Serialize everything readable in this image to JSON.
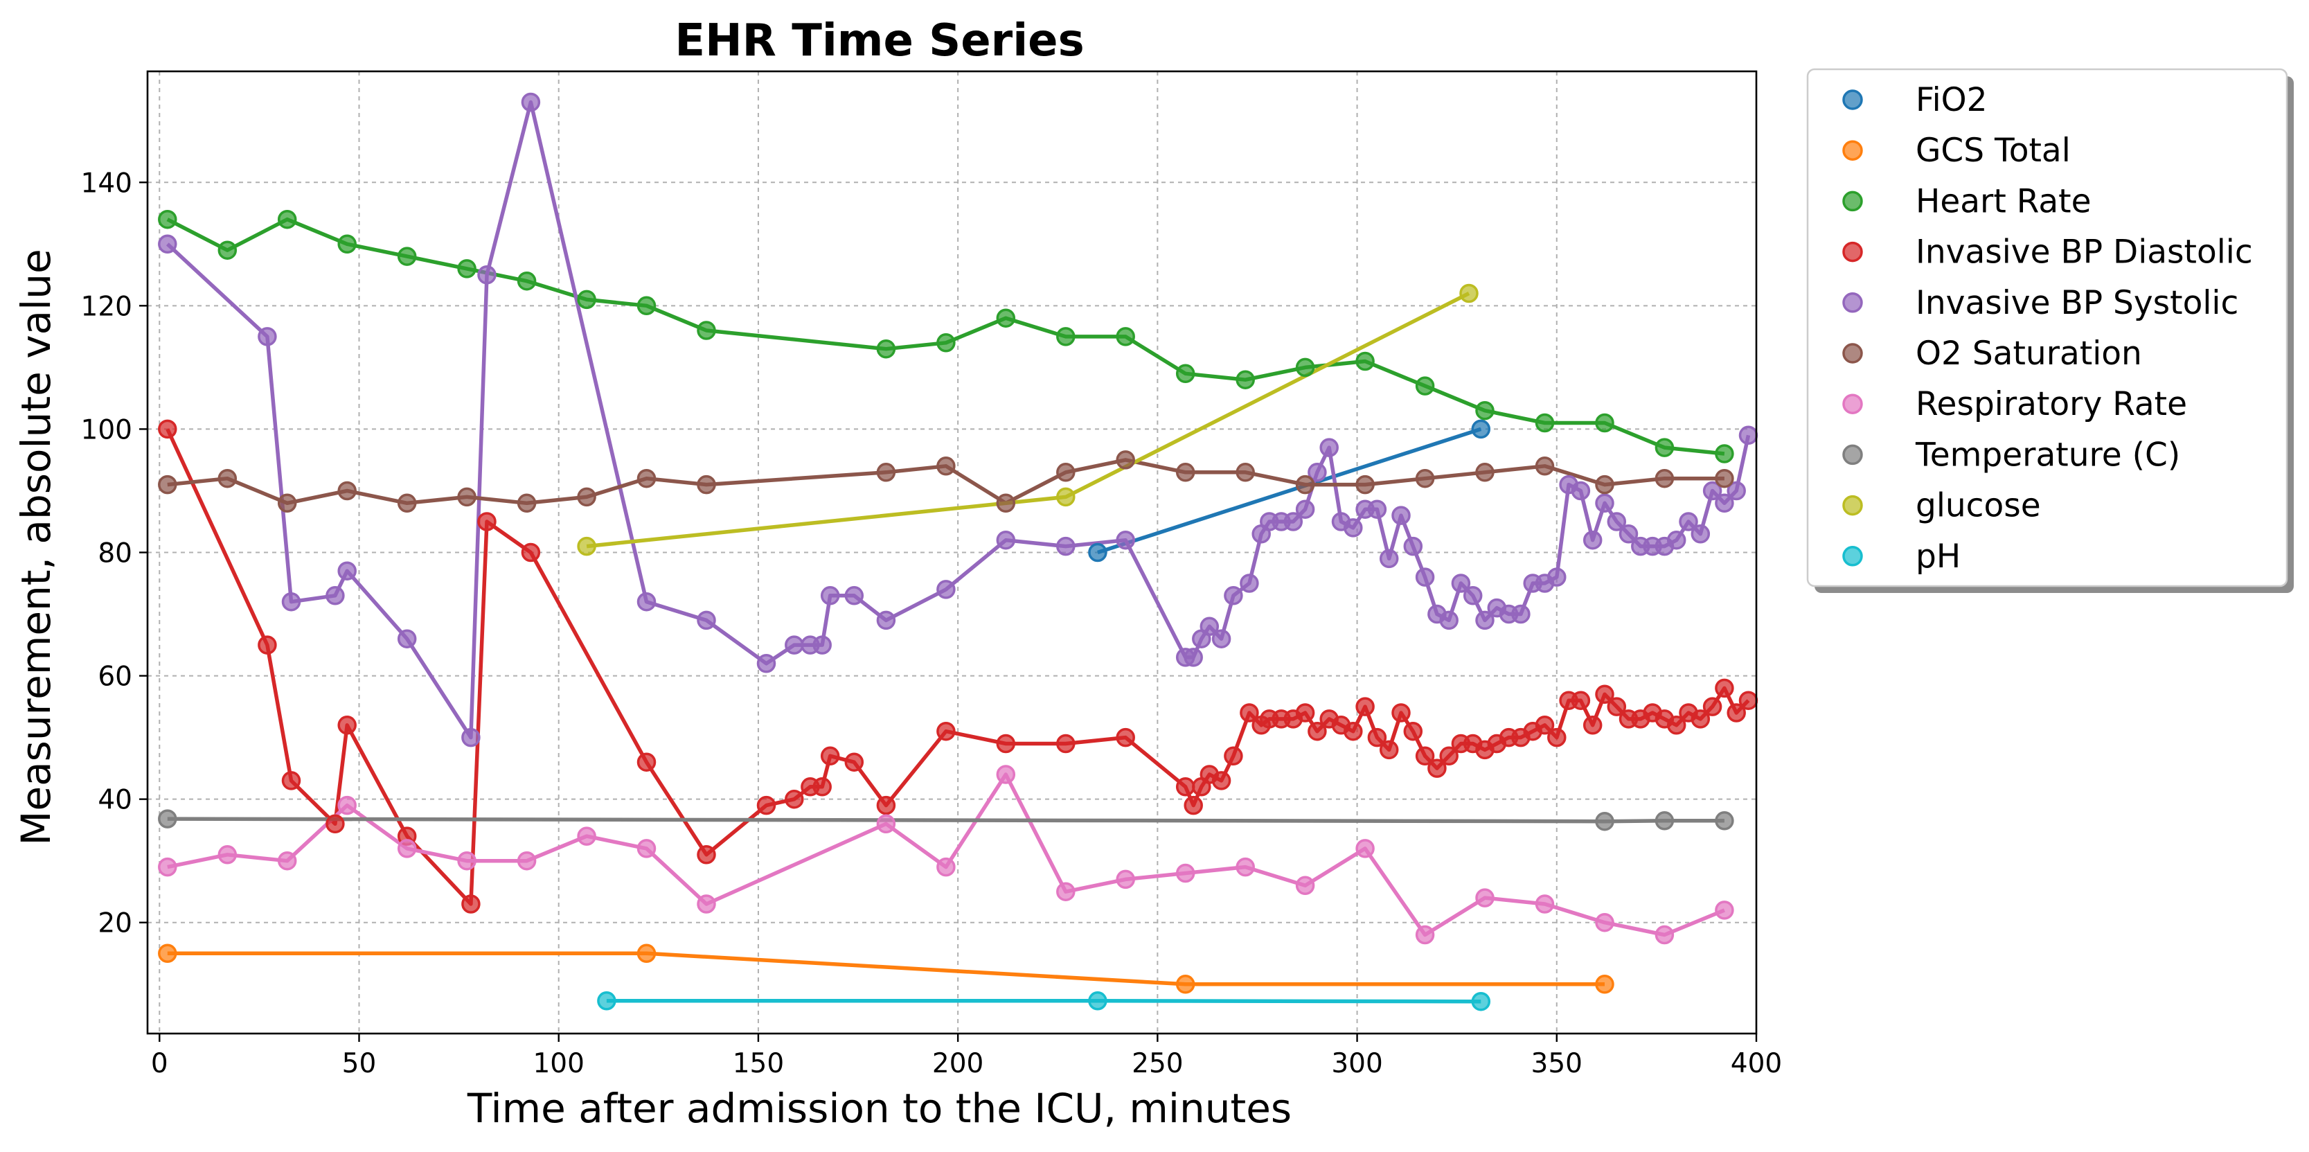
{
  "chart_data": {
    "type": "line",
    "title": "EHR Time Series",
    "xlabel": "Time after admission to the ICU, minutes",
    "ylabel": "Measurement, absolute value",
    "xlim": [
      -3,
      400
    ],
    "ylim": [
      2,
      158
    ],
    "xticks": [
      0,
      50,
      100,
      150,
      200,
      250,
      300,
      350,
      400
    ],
    "yticks": [
      20,
      40,
      60,
      80,
      100,
      120,
      140
    ],
    "grid": true,
    "legend_position": "outside-top-right",
    "series": [
      {
        "name": "FiO2",
        "color": "#1f77b4",
        "points": [
          [
            235,
            80
          ],
          [
            331,
            100
          ]
        ]
      },
      {
        "name": "GCS Total",
        "color": "#ff7f0e",
        "points": [
          [
            2,
            15
          ],
          [
            122,
            15
          ],
          [
            257,
            10
          ],
          [
            362,
            10
          ]
        ]
      },
      {
        "name": "Heart Rate",
        "color": "#2ca02c",
        "points": [
          [
            2,
            134
          ],
          [
            17,
            129
          ],
          [
            32,
            134
          ],
          [
            47,
            130
          ],
          [
            62,
            128
          ],
          [
            77,
            126
          ],
          [
            92,
            124
          ],
          [
            107,
            121
          ],
          [
            122,
            120
          ],
          [
            137,
            116
          ],
          [
            182,
            113
          ],
          [
            197,
            114
          ],
          [
            212,
            118
          ],
          [
            227,
            115
          ],
          [
            242,
            115
          ],
          [
            257,
            109
          ],
          [
            272,
            108
          ],
          [
            287,
            110
          ],
          [
            302,
            111
          ],
          [
            317,
            107
          ],
          [
            332,
            103
          ],
          [
            347,
            101
          ],
          [
            362,
            101
          ],
          [
            377,
            97
          ],
          [
            392,
            96
          ]
        ]
      },
      {
        "name": "Invasive BP Diastolic",
        "color": "#d62728",
        "points": [
          [
            2,
            100
          ],
          [
            27,
            65
          ],
          [
            33,
            43
          ],
          [
            44,
            36
          ],
          [
            47,
            52
          ],
          [
            62,
            34
          ],
          [
            78,
            23
          ],
          [
            82,
            85
          ],
          [
            93,
            80
          ],
          [
            122,
            46
          ],
          [
            137,
            31
          ],
          [
            152,
            39
          ],
          [
            159,
            40
          ],
          [
            163,
            42
          ],
          [
            166,
            42
          ],
          [
            168,
            47
          ],
          [
            174,
            46
          ],
          [
            182,
            39
          ],
          [
            197,
            51
          ],
          [
            212,
            49
          ],
          [
            227,
            49
          ],
          [
            242,
            50
          ],
          [
            257,
            42
          ],
          [
            259,
            39
          ],
          [
            261,
            42
          ],
          [
            263,
            44
          ],
          [
            266,
            43
          ],
          [
            269,
            47
          ],
          [
            273,
            54
          ],
          [
            276,
            52
          ],
          [
            278,
            53
          ],
          [
            281,
            53
          ],
          [
            284,
            53
          ],
          [
            287,
            54
          ],
          [
            290,
            51
          ],
          [
            293,
            53
          ],
          [
            296,
            52
          ],
          [
            299,
            51
          ],
          [
            302,
            55
          ],
          [
            305,
            50
          ],
          [
            308,
            48
          ],
          [
            311,
            54
          ],
          [
            314,
            51
          ],
          [
            317,
            47
          ],
          [
            320,
            45
          ],
          [
            323,
            47
          ],
          [
            326,
            49
          ],
          [
            329,
            49
          ],
          [
            332,
            48
          ],
          [
            335,
            49
          ],
          [
            338,
            50
          ],
          [
            341,
            50
          ],
          [
            344,
            51
          ],
          [
            347,
            52
          ],
          [
            350,
            50
          ],
          [
            353,
            56
          ],
          [
            356,
            56
          ],
          [
            359,
            52
          ],
          [
            362,
            57
          ],
          [
            365,
            55
          ],
          [
            368,
            53
          ],
          [
            371,
            53
          ],
          [
            374,
            54
          ],
          [
            377,
            53
          ],
          [
            380,
            52
          ],
          [
            383,
            54
          ],
          [
            386,
            53
          ],
          [
            389,
            55
          ],
          [
            392,
            58
          ],
          [
            395,
            54
          ],
          [
            398,
            56
          ]
        ]
      },
      {
        "name": "Invasive BP Systolic",
        "color": "#9467bd",
        "points": [
          [
            2,
            130
          ],
          [
            27,
            115
          ],
          [
            33,
            72
          ],
          [
            44,
            73
          ],
          [
            47,
            77
          ],
          [
            62,
            66
          ],
          [
            78,
            50
          ],
          [
            82,
            125
          ],
          [
            93,
            153
          ],
          [
            122,
            72
          ],
          [
            137,
            69
          ],
          [
            152,
            62
          ],
          [
            159,
            65
          ],
          [
            163,
            65
          ],
          [
            166,
            65
          ],
          [
            168,
            73
          ],
          [
            174,
            73
          ],
          [
            182,
            69
          ],
          [
            197,
            74
          ],
          [
            212,
            82
          ],
          [
            227,
            81
          ],
          [
            242,
            82
          ],
          [
            257,
            63
          ],
          [
            259,
            63
          ],
          [
            261,
            66
          ],
          [
            263,
            68
          ],
          [
            266,
            66
          ],
          [
            269,
            73
          ],
          [
            273,
            75
          ],
          [
            276,
            83
          ],
          [
            278,
            85
          ],
          [
            281,
            85
          ],
          [
            284,
            85
          ],
          [
            287,
            87
          ],
          [
            290,
            93
          ],
          [
            293,
            97
          ],
          [
            296,
            85
          ],
          [
            299,
            84
          ],
          [
            302,
            87
          ],
          [
            305,
            87
          ],
          [
            308,
            79
          ],
          [
            311,
            86
          ],
          [
            314,
            81
          ],
          [
            317,
            76
          ],
          [
            320,
            70
          ],
          [
            323,
            69
          ],
          [
            326,
            75
          ],
          [
            329,
            73
          ],
          [
            332,
            69
          ],
          [
            335,
            71
          ],
          [
            338,
            70
          ],
          [
            341,
            70
          ],
          [
            344,
            75
          ],
          [
            347,
            75
          ],
          [
            350,
            76
          ],
          [
            353,
            91
          ],
          [
            356,
            90
          ],
          [
            359,
            82
          ],
          [
            362,
            88
          ],
          [
            365,
            85
          ],
          [
            368,
            83
          ],
          [
            371,
            81
          ],
          [
            374,
            81
          ],
          [
            377,
            81
          ],
          [
            380,
            82
          ],
          [
            383,
            85
          ],
          [
            386,
            83
          ],
          [
            389,
            90
          ],
          [
            392,
            88
          ],
          [
            395,
            90
          ],
          [
            398,
            99
          ]
        ]
      },
      {
        "name": "O2 Saturation",
        "color": "#8c564b",
        "points": [
          [
            2,
            91
          ],
          [
            17,
            92
          ],
          [
            32,
            88
          ],
          [
            47,
            90
          ],
          [
            62,
            88
          ],
          [
            77,
            89
          ],
          [
            92,
            88
          ],
          [
            107,
            89
          ],
          [
            122,
            92
          ],
          [
            137,
            91
          ],
          [
            182,
            93
          ],
          [
            197,
            94
          ],
          [
            212,
            88
          ],
          [
            227,
            93
          ],
          [
            242,
            95
          ],
          [
            257,
            93
          ],
          [
            272,
            93
          ],
          [
            287,
            91
          ],
          [
            302,
            91
          ],
          [
            317,
            92
          ],
          [
            332,
            93
          ],
          [
            347,
            94
          ],
          [
            362,
            91
          ],
          [
            377,
            92
          ],
          [
            392,
            92
          ]
        ]
      },
      {
        "name": "Respiratory Rate",
        "color": "#e377c2",
        "points": [
          [
            2,
            29
          ],
          [
            17,
            31
          ],
          [
            32,
            30
          ],
          [
            47,
            39
          ],
          [
            62,
            32
          ],
          [
            77,
            30
          ],
          [
            92,
            30
          ],
          [
            107,
            34
          ],
          [
            122,
            32
          ],
          [
            137,
            23
          ],
          [
            182,
            36
          ],
          [
            197,
            29
          ],
          [
            212,
            44
          ],
          [
            227,
            25
          ],
          [
            242,
            27
          ],
          [
            257,
            28
          ],
          [
            272,
            29
          ],
          [
            287,
            26
          ],
          [
            302,
            32
          ],
          [
            317,
            18
          ],
          [
            332,
            24
          ],
          [
            347,
            23
          ],
          [
            362,
            20
          ],
          [
            377,
            18
          ],
          [
            392,
            22
          ]
        ]
      },
      {
        "name": "Temperature (C)",
        "color": "#7f7f7f",
        "points": [
          [
            2,
            36.8
          ],
          [
            362,
            36.4
          ],
          [
            377,
            36.5
          ],
          [
            392,
            36.5
          ]
        ]
      },
      {
        "name": "glucose",
        "color": "#bcbd22",
        "points": [
          [
            107,
            81
          ],
          [
            227,
            89
          ],
          [
            328,
            122
          ]
        ]
      },
      {
        "name": "pH",
        "color": "#17becf",
        "points": [
          [
            112,
            7.3
          ],
          [
            235,
            7.3
          ],
          [
            331,
            7.2
          ]
        ]
      }
    ]
  }
}
